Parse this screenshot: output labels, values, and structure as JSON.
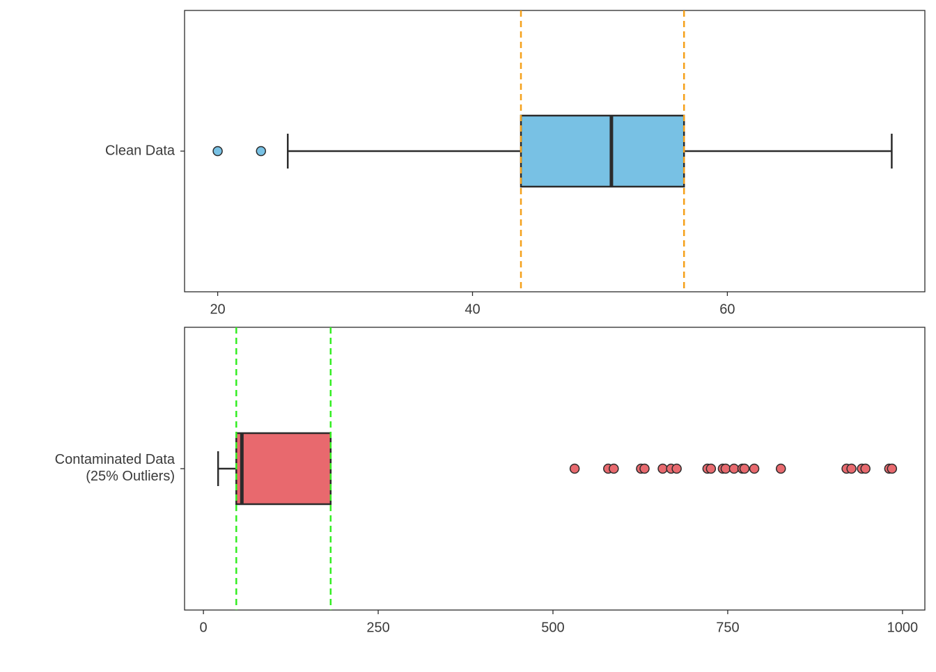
{
  "chart_data": [
    {
      "type": "boxplot",
      "categories": [
        "Clean Data"
      ],
      "color": "#78c1e4",
      "boxes": [
        {
          "whisker_low": 25.5,
          "q1": 43.8,
          "median": 50.9,
          "q3": 56.6,
          "whisker_high": 72.9,
          "outliers": [
            20.0,
            23.4
          ]
        }
      ],
      "reference_lines": {
        "values": [
          43.8,
          56.6
        ],
        "color": "#f5a01a"
      },
      "xlim": [
        17.4,
        75.5
      ],
      "xticks": [
        20,
        40,
        60
      ]
    },
    {
      "type": "boxplot",
      "categories": [
        "Contaminated Data\n(25% Outliers)"
      ],
      "color": "#e8696e",
      "boxes": [
        {
          "whisker_low": 21,
          "q1": 47,
          "median": 55,
          "q3": 182,
          "whisker_high": 182,
          "outliers": [
            531,
            579,
            587,
            626,
            631,
            657,
            669,
            677,
            721,
            726,
            743,
            747,
            759,
            771,
            774,
            788,
            826,
            920,
            927,
            942,
            947,
            981,
            985
          ]
        }
      ],
      "reference_lines": {
        "values": [
          47,
          182
        ],
        "color": "#33ee22"
      },
      "xlim": [
        -27,
        1032
      ],
      "xticks": [
        0,
        250,
        500,
        750,
        1000
      ]
    }
  ]
}
